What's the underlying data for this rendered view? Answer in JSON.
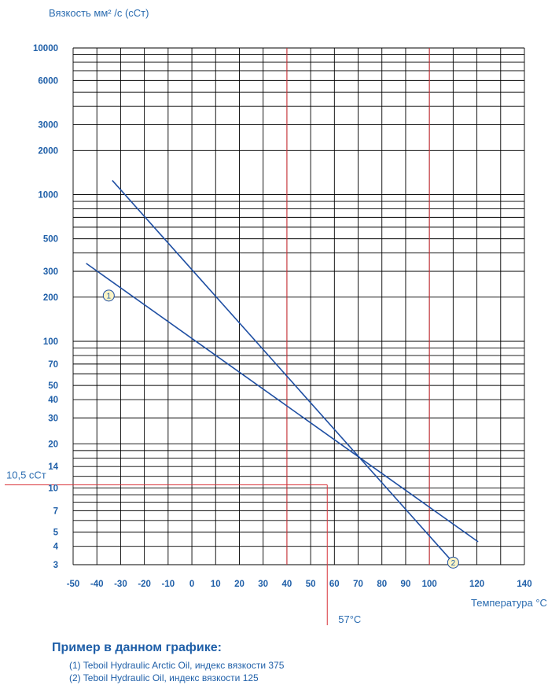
{
  "chart_data": {
    "type": "line",
    "ylabel": "Вязкость мм² /с (сСт)",
    "xlabel": "Температура °С",
    "xlim": [
      -50,
      140
    ],
    "ylim": [
      3,
      10000
    ],
    "y_scale": "log",
    "x_ticks": [
      -50,
      -40,
      -30,
      -20,
      -10,
      0,
      10,
      20,
      30,
      40,
      50,
      60,
      70,
      80,
      90,
      100,
      120,
      140
    ],
    "y_ticks": [
      10000,
      6000,
      3000,
      2000,
      1000,
      500,
      300,
      200,
      100,
      70,
      50,
      40,
      30,
      20,
      14,
      10,
      7,
      5,
      4,
      3
    ],
    "y_minor_gridlines": [
      9000,
      8000,
      7000,
      5000,
      4000,
      900,
      800,
      700,
      600,
      400,
      90,
      80,
      60,
      18,
      16,
      12,
      9,
      8,
      6
    ],
    "x_gridlines": [
      -50,
      -40,
      -30,
      -20,
      -10,
      0,
      10,
      20,
      30,
      40,
      50,
      60,
      70,
      80,
      90,
      100,
      110,
      120,
      130,
      140
    ],
    "grid": true,
    "series": [
      {
        "marker": "1",
        "x": [
          -44.5,
          120.5
        ],
        "y": [
          340,
          4.3
        ],
        "marker_at": [
          -35,
          205
        ]
      },
      {
        "marker": "2",
        "x": [
          -33.5,
          110
        ],
        "y": [
          1250,
          3.1
        ],
        "marker_at": [
          110,
          3.1
        ]
      }
    ],
    "reference_lines": [
      {
        "axis": "x",
        "value": 40
      },
      {
        "axis": "x",
        "value": 100
      },
      {
        "axis": "x",
        "value": 57,
        "label": "57°C"
      },
      {
        "axis": "y",
        "value": 10.5,
        "label": "10,5 сСт"
      }
    ],
    "colors": {
      "series": "#1f4fa3",
      "reference": "#d9343a",
      "grid": "#000000",
      "text": "#1f5fa8"
    }
  },
  "legend": {
    "title": "Пример в данном графике:",
    "items": [
      "(1) Teboil Hydraulic Arctic Oil, индекс вязкости 375",
      "(2) Teboil Hydraulic Oil, индекс вязкости 125"
    ]
  }
}
